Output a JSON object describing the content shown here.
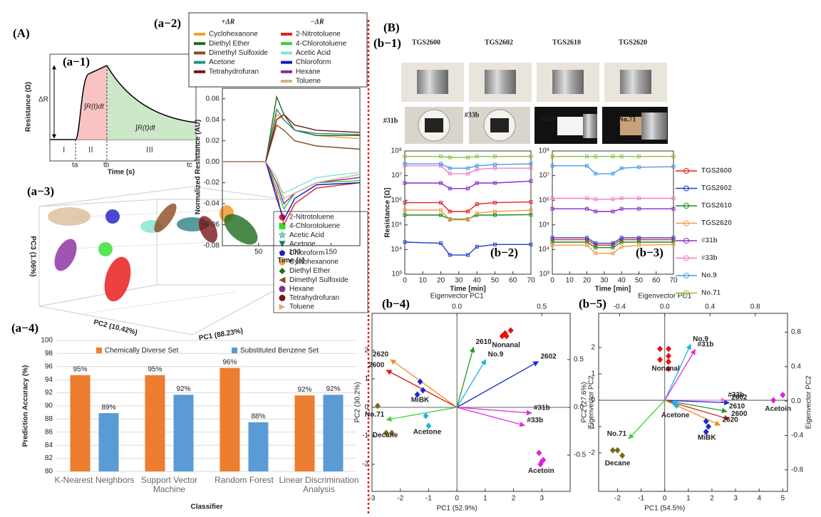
{
  "panels": {
    "labels": {
      "A": "(A)",
      "B": "(B)",
      "a1": "(a−1)",
      "a2": "(a−2)",
      "a3": "(a−3)",
      "a4": "(a−4)",
      "b1": "(b−1)",
      "b2": "(b−2)",
      "b3": "(b−3)",
      "b4": "(b−4)",
      "b5": "(b−5)"
    },
    "a1": {
      "delta": "ΔR",
      "ylabel": "Resistance (Ω)",
      "xlabel": "Time (s)",
      "regions": [
        "I",
        "II",
        "III"
      ],
      "times": [
        "ta",
        "tb",
        "tc"
      ],
      "integrals": [
        "∫R(t)dt",
        "∫R(t)dt"
      ]
    },
    "a3": {
      "axes": [
        "PC1 (88.23%)",
        "PC2 (10.42%)",
        "PC3 (1.06%)"
      ],
      "legend": [
        {
          "name": "2-Nitrotoluene",
          "color": "#e8201e",
          "marker": "circle"
        },
        {
          "name": "4-Chlorotoluene",
          "color": "#2ee02e",
          "marker": "square"
        },
        {
          "name": "Acetic Acid",
          "color": "#7fe5cf",
          "marker": "star"
        },
        {
          "name": "Acetone",
          "color": "#1f7a7a",
          "marker": "tri-down"
        },
        {
          "name": "Chloroform",
          "color": "#1a1ac8",
          "marker": "pentagon"
        },
        {
          "name": "Cyclohexanone",
          "color": "#f39a2c",
          "marker": "circle"
        },
        {
          "name": "Diethyl Ether",
          "color": "#1d6b1d",
          "marker": "diamond"
        },
        {
          "name": "Dimethyl Sulfoxide",
          "color": "#8b4a20",
          "marker": "tri-left"
        },
        {
          "name": "Hexane",
          "color": "#8a2aa0",
          "marker": "circle"
        },
        {
          "name": "Tetrahydrofuran",
          "color": "#7a1515",
          "marker": "circle"
        },
        {
          "name": "Toluene",
          "color": "#d4b48a",
          "marker": "tri-right"
        }
      ]
    },
    "b1": {
      "top": [
        "TGS2600",
        "TGS2602",
        "TGS2610",
        "TGS2620"
      ],
      "bottom": [
        "#31b",
        "#33b",
        "No.9",
        "No.71"
      ]
    }
  },
  "chart_data": [
    {
      "type": "line",
      "legend_titles": [
        "+ΔR",
        "−ΔR"
      ],
      "xlabel": "Time (s)",
      "ylabel": "Normalized Resistance (AU)",
      "x": [
        0,
        60,
        75,
        85,
        100,
        130,
        190
      ],
      "xlim": [
        0,
        190
      ],
      "xticks": [
        50,
        100,
        150
      ],
      "ylim": [
        -0.08,
        0.07
      ],
      "yticks": [
        -0.08,
        -0.06,
        -0.04,
        -0.02,
        {
          "value": 0,
          "label": "0.00"
        },
        0.02,
        0.04,
        0.06
      ],
      "series": [
        {
          "name": "Cyclohexanone",
          "color": "#f5a030",
          "values": [
            0,
            0,
            0.045,
            0.04,
            0.03,
            0.025,
            0.022
          ]
        },
        {
          "name": "Diethyl Ether",
          "color": "#1e6b1e",
          "values": [
            0,
            0,
            0.062,
            0.045,
            0.03,
            0.025,
            0.025
          ]
        },
        {
          "name": "Dimethyl Sulfoxide",
          "color": "#8b4a20",
          "values": [
            0,
            0,
            0.035,
            0.03,
            0.02,
            0.015,
            0.012
          ]
        },
        {
          "name": "Acetone",
          "color": "#2e8b8b",
          "values": [
            0,
            0,
            0.05,
            0.04,
            0.03,
            0.027,
            0.026
          ]
        },
        {
          "name": "Tetrahydrofuran",
          "color": "#7a1515",
          "values": [
            0,
            0,
            0.04,
            0.045,
            0.035,
            0.03,
            0.028
          ]
        },
        {
          "name": "2-Nitrotoluene",
          "color": "#e02020",
          "values": [
            0,
            0,
            -0.03,
            -0.06,
            -0.04,
            -0.025,
            -0.02
          ]
        },
        {
          "name": "4-Chlorotoluene",
          "color": "#30d030",
          "values": [
            0,
            0,
            -0.025,
            -0.045,
            -0.03,
            -0.02,
            -0.018
          ]
        },
        {
          "name": "Acetic Acid",
          "color": "#80e8d0",
          "values": [
            0,
            0,
            -0.02,
            -0.03,
            -0.025,
            -0.015,
            -0.01
          ]
        },
        {
          "name": "Chloroform",
          "color": "#1515c8",
          "values": [
            0,
            0,
            -0.035,
            -0.055,
            -0.035,
            -0.022,
            -0.02
          ]
        },
        {
          "name": "Hexane",
          "color": "#8a2aa0",
          "values": [
            0,
            0,
            -0.02,
            -0.04,
            -0.03,
            -0.02,
            -0.015
          ]
        },
        {
          "name": "Toluene",
          "color": "#d4b48a",
          "values": [
            0,
            0,
            -0.015,
            -0.035,
            -0.03,
            -0.02,
            -0.012
          ]
        }
      ]
    },
    {
      "type": "bar",
      "ylabel": "Prediction Accuracy (%)",
      "xlabel": "Classifier",
      "categories": [
        "K-Nearest Neighbors",
        "Support Vector Machine",
        "Random Forest",
        "Linear Discrimination Analysis"
      ],
      "ylim": [
        80,
        100
      ],
      "yticks": [
        80,
        82,
        84,
        86,
        88,
        90,
        92,
        94,
        96,
        98,
        100
      ],
      "grid": true,
      "series": [
        {
          "name": "Chemically Diverse Set",
          "color": "#ed7d31",
          "values": [
            94.7,
            94.7,
            95.8,
            91.6
          ],
          "value_labels": [
            "95%",
            "95%",
            "96%",
            "92%"
          ]
        },
        {
          "name": "Substituted Benzene Set",
          "color": "#5b9bd5",
          "values": [
            88.9,
            91.7,
            87.5,
            91.7
          ],
          "value_labels": [
            "89%",
            "92%",
            "88%",
            "92%"
          ]
        }
      ]
    },
    {
      "type": "line",
      "log_y": true,
      "xlabel": "Time [min]",
      "ylabel": "Resistance [Ω]",
      "x": [
        0,
        20,
        25,
        35,
        40,
        50,
        70
      ],
      "xlim": [
        0,
        70
      ],
      "xticks": [
        0,
        10,
        20,
        30,
        40,
        50,
        60,
        70
      ],
      "ylim": [
        1000,
        100000000
      ],
      "yticks": [
        {
          "value": 1000,
          "label": "10³"
        },
        {
          "value": 10000,
          "label": "10⁴"
        },
        {
          "value": 100000,
          "label": "10⁵"
        },
        {
          "value": 1000000,
          "label": "10⁶"
        },
        {
          "value": 10000000,
          "label": "10⁷"
        },
        {
          "value": 100000000,
          "label": "10⁸"
        }
      ],
      "series": [
        {
          "name": "TGS2600",
          "color": "#e8201e",
          "values": [
            800000,
            800000,
            350000,
            350000,
            700000,
            800000,
            850000
          ]
        },
        {
          "name": "TGS2602",
          "color": "#1f3fd0",
          "values": [
            20000,
            18000,
            6000,
            6000,
            13000,
            16000,
            16000
          ]
        },
        {
          "name": "TGS2610",
          "color": "#1e8b1e",
          "values": [
            250000,
            250000,
            170000,
            170000,
            250000,
            250000,
            260000
          ]
        },
        {
          "name": "TGS2620",
          "color": "#f39a4c",
          "values": [
            400000,
            400000,
            160000,
            160000,
            300000,
            350000,
            400000
          ]
        },
        {
          "name": "#31b",
          "color": "#8a2ad0",
          "values": [
            5000000,
            5000000,
            3000000,
            3000000,
            5000000,
            5000000,
            6000000
          ]
        },
        {
          "name": "#33b",
          "color": "#f080c8",
          "values": [
            25000000,
            25000000,
            12000000,
            12000000,
            18000000,
            20000000,
            20000000
          ]
        },
        {
          "name": "No.9",
          "color": "#4a9ae8",
          "values": [
            30000000,
            30000000,
            20000000,
            20000000,
            25000000,
            28000000,
            30000000
          ]
        },
        {
          "name": "No.71",
          "color": "#8fc23c",
          "values": [
            60000000,
            60000000,
            55000000,
            55000000,
            60000000,
            60000000,
            60000000
          ]
        }
      ]
    },
    {
      "type": "line",
      "log_y": true,
      "xlabel": "Time [min]",
      "x": [
        0,
        20,
        25,
        35,
        40,
        50,
        70
      ],
      "xlim": [
        0,
        70
      ],
      "xticks": [
        0,
        10,
        20,
        30,
        40,
        50,
        60,
        70
      ],
      "ylim": [
        1000,
        100000000
      ],
      "yticks": [
        {
          "value": 1000,
          "label": "10³"
        },
        {
          "value": 10000,
          "label": "10⁴"
        },
        {
          "value": 100000,
          "label": "10⁵"
        },
        {
          "value": 1000000,
          "label": "10⁶"
        },
        {
          "value": 10000000,
          "label": "10⁷"
        },
        {
          "value": 100000000,
          "label": "10⁸"
        }
      ],
      "series": [
        {
          "color": "#e8201e",
          "values": [
            25000,
            25000,
            15000,
            15000,
            25000,
            25000,
            25000
          ]
        },
        {
          "color": "#1f3fd0",
          "values": [
            30000,
            30000,
            18000,
            18000,
            30000,
            30000,
            30000
          ]
        },
        {
          "color": "#1e8b1e",
          "values": [
            20000,
            20000,
            12000,
            12000,
            20000,
            20000,
            20000
          ]
        },
        {
          "color": "#f39a4c",
          "values": [
            15000,
            15000,
            7000,
            7000,
            13000,
            15000,
            16000
          ]
        },
        {
          "color": "#8a2ad0",
          "values": [
            450000,
            450000,
            350000,
            350000,
            450000,
            450000,
            450000
          ]
        },
        {
          "color": "#f080c8",
          "values": [
            1200000,
            1200000,
            1100000,
            1100000,
            1200000,
            1200000,
            1200000
          ]
        },
        {
          "color": "#4a9ae8",
          "values": [
            25000000,
            25000000,
            12000000,
            12000000,
            20000000,
            22000000,
            23000000
          ]
        },
        {
          "color": "#8fc23c",
          "values": [
            60000000,
            60000000,
            60000000,
            60000000,
            60000000,
            60000000,
            60000000
          ]
        }
      ]
    },
    {
      "type": "biplot",
      "top_label": "Eigenvector PC1",
      "xlabel": "PC1 (52.9%)",
      "ylabel": "PC2 (30.2%)",
      "y2label": "Eigenvector PC2",
      "xlim": [
        -3,
        4
      ],
      "xticks": [
        -3,
        -2,
        -1,
        0,
        1,
        2,
        3
      ],
      "ylim": [
        -2.95,
        3.3
      ],
      "yticks": [
        -2,
        -1,
        0,
        1,
        2
      ],
      "x2lim": [
        -0.5,
        0.667
      ],
      "x2ticks": [
        {
          "value": 0,
          "label": "0.0"
        },
        0.5
      ],
      "y2lim": [
        -0.88,
        0.985
      ],
      "y2ticks": [
        -0.5,
        {
          "value": 0,
          "label": "0.0"
        },
        0.5
      ],
      "groups": [
        {
          "name": "Nonanal",
          "color": "#e81010",
          "x": [
            1.6,
            1.75,
            1.9,
            1.7
          ],
          "y": [
            2.5,
            2.5,
            2.7,
            2.6
          ]
        },
        {
          "name": "Acetoin",
          "color": "#e020e0",
          "x": [
            2.9,
            3.0,
            2.95,
            3.05
          ],
          "y": [
            -1.6,
            -1.9,
            -2.0,
            -1.85
          ]
        },
        {
          "name": "Decane",
          "color": "#7a6a10",
          "x": [
            -2.8,
            -2.5,
            -2.3
          ],
          "y": [
            0.05,
            -0.9,
            -0.9
          ]
        },
        {
          "name": "MiBK",
          "color": "#1a2ac8",
          "x": [
            -1.3,
            -1.2,
            -1.4
          ],
          "y": [
            0.9,
            0.6,
            0.45
          ]
        },
        {
          "name": "Acetone",
          "color": "#20b0e8",
          "x": [
            -1.1,
            -1.0
          ],
          "y": [
            -0.3,
            -0.65
          ]
        }
      ],
      "arrows": [
        {
          "name": "2600",
          "color": "#e01818",
          "x": -0.415,
          "y": 0.39
        },
        {
          "name": "2620",
          "color": "#f08a20",
          "x": -0.39,
          "y": 0.5
        },
        {
          "name": "2610",
          "color": "#1e9b1e",
          "x": 0.098,
          "y": 0.63
        },
        {
          "name": "No.9",
          "color": "#20b0e8",
          "x": 0.17,
          "y": 0.5
        },
        {
          "name": "2602",
          "color": "#1a2ac8",
          "x": 0.48,
          "y": 0.48
        },
        {
          "name": "#31b",
          "color": "#e030e0",
          "x": 0.44,
          "y": -0.06
        },
        {
          "name": "#33b",
          "color": "#e030e0",
          "x": 0.4,
          "y": -0.19
        },
        {
          "name": "No.71",
          "color": "#40d040",
          "x": -0.415,
          "y": -0.13
        }
      ]
    },
    {
      "type": "biplot",
      "top_label": "Eigenvector PC1",
      "xlabel": "PC1 (54.5%)",
      "ylabel": "PC2 (27.6%)",
      "y2label": "Eigenvector PC2",
      "xlim": [
        -2.8,
        5.2
      ],
      "xticks": [
        -2,
        -1,
        0,
        1,
        2,
        3,
        4,
        5
      ],
      "ylim": [
        -3.46,
        3.3
      ],
      "yticks": [
        -2,
        -1,
        0,
        1,
        2
      ],
      "x2lim": [
        -0.585,
        1.086
      ],
      "x2ticks": [
        -0.4,
        {
          "value": 0,
          "label": "0.0"
        },
        0.4,
        0.8
      ],
      "y2lim": [
        -1.05,
        1.02
      ],
      "y2ticks": [
        -0.8,
        -0.4,
        {
          "value": 0,
          "label": "0.0"
        },
        0.4,
        0.8
      ],
      "groups": [
        {
          "name": "Nonanal",
          "color": "#e81010",
          "x": [
            -0.2,
            0.16,
            0.16,
            0.16,
            0.16,
            -0.2
          ],
          "y": [
            1.95,
            1.95,
            1.68,
            1.46,
            1.19,
            1.54
          ]
        },
        {
          "name": "Acetoin",
          "color": "#e020e0",
          "x": [
            4.6,
            5.0
          ],
          "y": [
            0.0,
            0.2
          ]
        },
        {
          "name": "MiBK",
          "color": "#1a2ac8",
          "x": [
            1.75,
            1.85,
            1.75
          ],
          "y": [
            -0.8,
            -1.0,
            -1.2
          ]
        },
        {
          "name": "Decane",
          "color": "#7a6a10",
          "x": [
            -2.2,
            -2.0,
            -1.8
          ],
          "y": [
            -1.9,
            -1.9,
            -2.1
          ]
        },
        {
          "name": "Acetone",
          "color": "#20b0e8",
          "x": [
            0.4,
            0.5
          ],
          "y": [
            -0.1,
            -0.2
          ]
        }
      ],
      "arrows": [
        {
          "name": "No.9",
          "color": "#20b0e8",
          "x": 0.23,
          "y": 0.66
        },
        {
          "name": "#31b",
          "color": "#e030e0",
          "x": 0.27,
          "y": 0.6
        },
        {
          "name": "#33b",
          "color": "#f080c8",
          "x": 0.54,
          "y": 0.01
        },
        {
          "name": "2602",
          "color": "#1a2ac8",
          "x": 0.57,
          "y": -0.02
        },
        {
          "name": "2610",
          "color": "#1e9b1e",
          "x": 0.55,
          "y": -0.12
        },
        {
          "name": "2600",
          "color": "#e01818",
          "x": 0.57,
          "y": -0.21
        },
        {
          "name": "2620",
          "color": "#f08a20",
          "x": 0.49,
          "y": -0.28
        },
        {
          "name": "No.71",
          "color": "#40d040",
          "x": -0.32,
          "y": -0.44
        }
      ]
    }
  ]
}
